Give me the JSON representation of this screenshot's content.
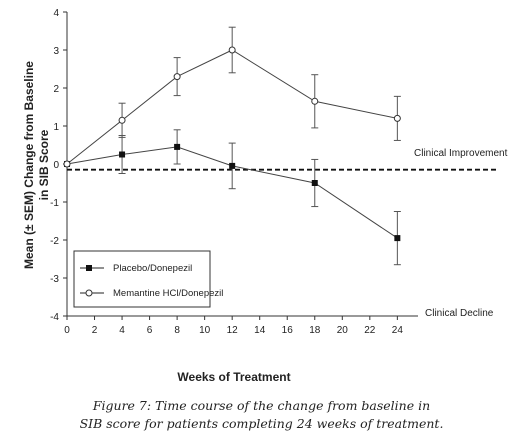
{
  "chart_data": {
    "type": "line",
    "title": "",
    "xlabel": "Weeks of Treatment",
    "ylabel_line1": "Mean (± SEM) Change from Baseline",
    "ylabel_line2": "in SIB Score",
    "xlim": [
      0,
      25.5
    ],
    "ylim": [
      -4,
      4
    ],
    "x_ticks": [
      0,
      2,
      4,
      6,
      8,
      10,
      12,
      14,
      16,
      18,
      20,
      22,
      24
    ],
    "y_ticks": [
      4,
      3,
      2,
      1,
      0,
      -1,
      -2,
      -3,
      -4
    ],
    "grid": false,
    "legend_position": "bottom-left",
    "reference_line": {
      "y": -0.15,
      "style": "dashed"
    },
    "annotations": [
      {
        "text": "Clinical Improvement",
        "y": 0.4
      },
      {
        "text": "Clinical Decline",
        "y": -3.95
      }
    ],
    "series": [
      {
        "name": "Placebo/Donepezil",
        "marker": "filled-square",
        "x": [
          0,
          4,
          8,
          12,
          18,
          24
        ],
        "y": [
          0,
          0.25,
          0.45,
          -0.05,
          -0.5,
          -1.95
        ],
        "err": [
          0,
          0.5,
          0.45,
          0.6,
          0.62,
          0.7
        ]
      },
      {
        "name": "Memantine HCl/Donepezil",
        "marker": "open-circle",
        "x": [
          0,
          4,
          8,
          12,
          18,
          24
        ],
        "y": [
          0,
          1.15,
          2.3,
          3.0,
          1.65,
          1.2
        ],
        "err": [
          0,
          0.45,
          0.5,
          0.6,
          0.7,
          0.58
        ]
      }
    ]
  },
  "caption": {
    "line1": "Figure 7: Time course of the change from baseline in",
    "line2": "SIB score for patients completing 24 weeks of treatment."
  }
}
